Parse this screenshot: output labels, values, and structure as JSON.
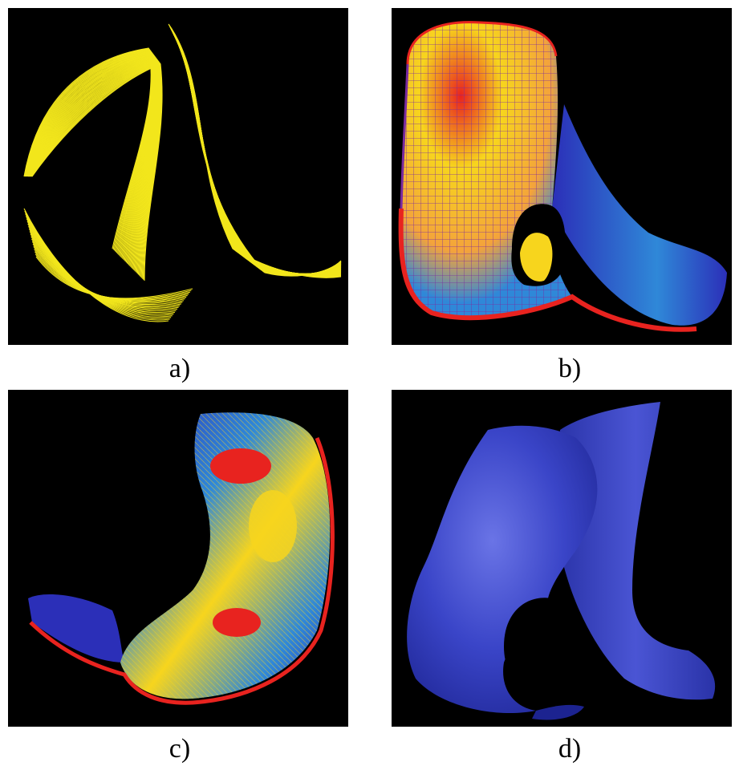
{
  "figure": {
    "panels": [
      {
        "id": "a",
        "caption": "a)",
        "render_style": "yellow-contour-wireframe",
        "color": "#f2e61c"
      },
      {
        "id": "b",
        "caption": "b)",
        "render_style": "stress-colored-mesh",
        "colors": [
          "#e8231f",
          "#f7d51d",
          "#2f88d8",
          "#2b2fb8"
        ]
      },
      {
        "id": "c",
        "caption": "c)",
        "render_style": "stress-colored-mesh-rotated",
        "colors": [
          "#e8231f",
          "#f7d51d",
          "#2f88d8",
          "#2b2fb8"
        ]
      },
      {
        "id": "d",
        "caption": "d)",
        "render_style": "shaded-solid-surface",
        "color": "#3a45c8"
      }
    ]
  }
}
